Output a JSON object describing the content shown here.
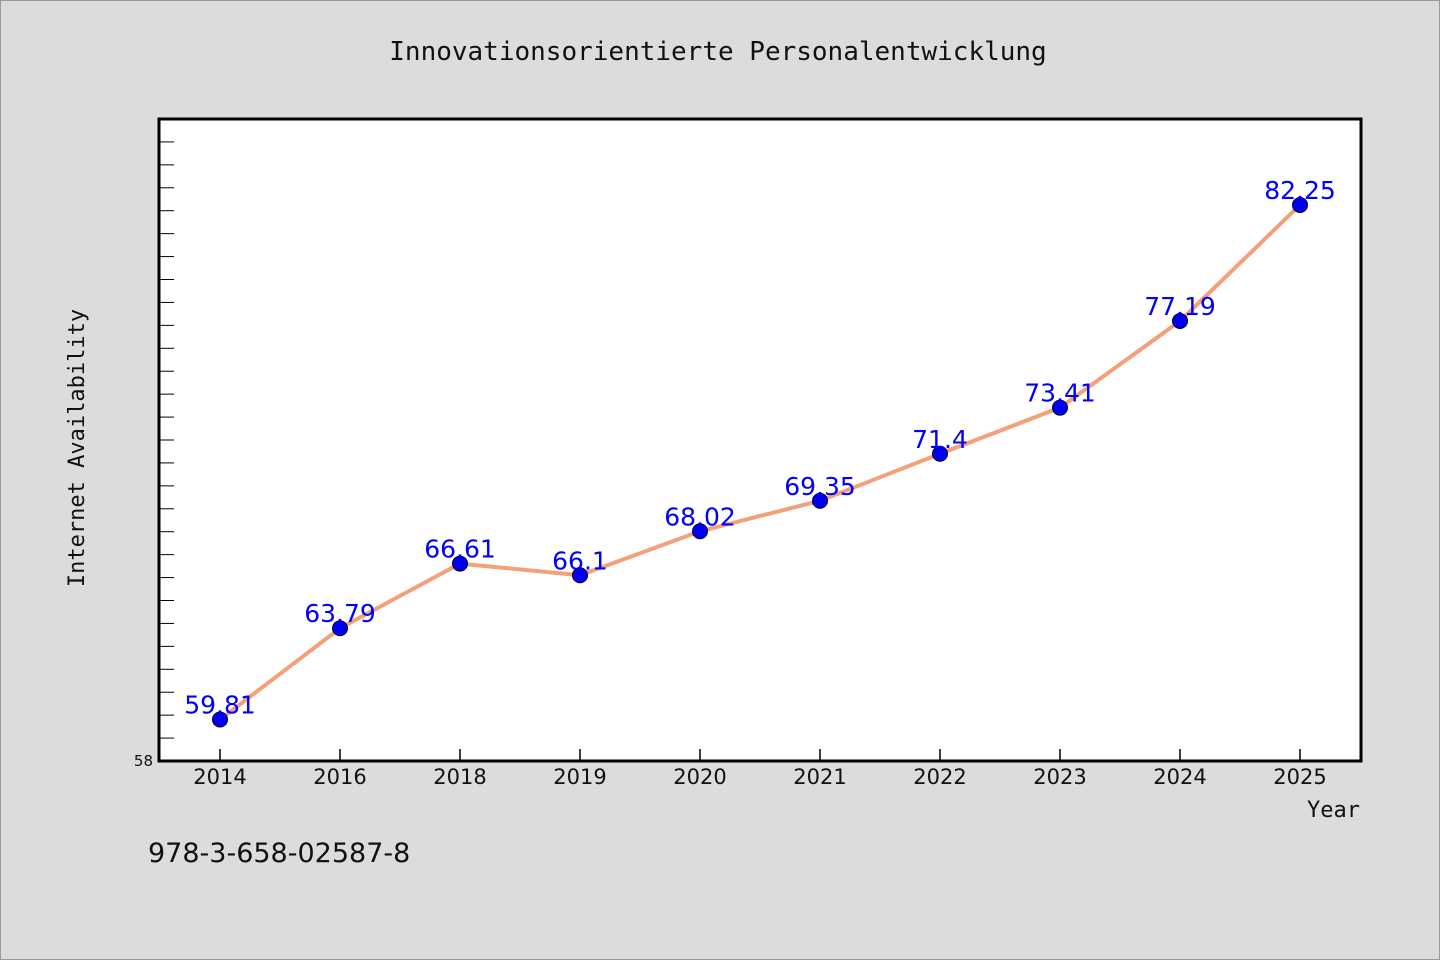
{
  "chart_data": {
    "type": "line",
    "title": "Innovationsorientierte Personalentwicklung",
    "xlabel": "Year",
    "ylabel": "Internet Availability",
    "categories": [
      "2014",
      "2016",
      "2018",
      "2019",
      "2020",
      "2021",
      "2022",
      "2023",
      "2024",
      "2025"
    ],
    "series": [
      {
        "values": [
          59.81,
          63.79,
          66.61,
          66.1,
          68.02,
          69.35,
          71.4,
          73.41,
          77.19,
          82.25
        ]
      }
    ],
    "data_labels": [
      "59.81",
      "63.79",
      "66.61",
      "66.1",
      "68.02",
      "69.35",
      "71.4",
      "73.41",
      "77.19",
      "82.25"
    ],
    "ylim": [
      58,
      86
    ],
    "y_tick_labels": [
      "58"
    ],
    "grid": false,
    "line_color": "#f4a07a",
    "marker_color": "#0000ee",
    "label_color": "#0000ff"
  },
  "footer": {
    "isbn": "978-3-658-02587-8"
  }
}
